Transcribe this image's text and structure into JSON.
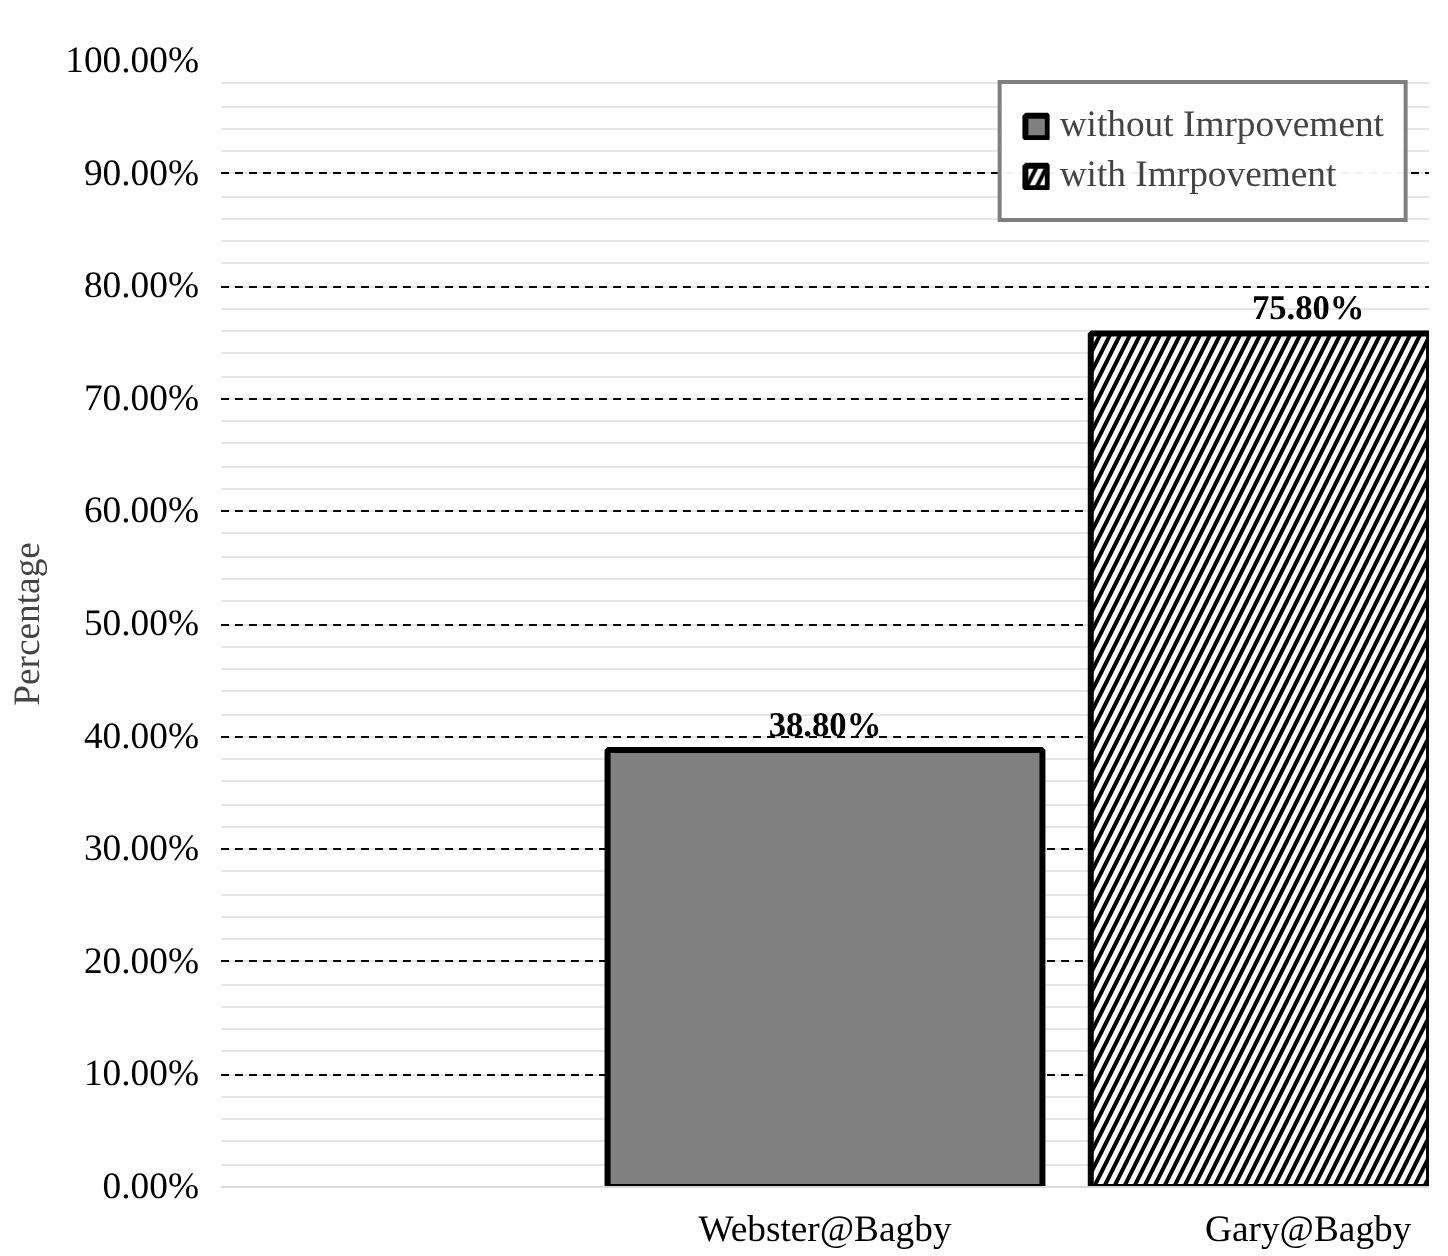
{
  "chart_data": {
    "type": "bar",
    "ylabel": "Percentage",
    "categories": [
      "Webster@Bagby",
      "Gary@Bagby"
    ],
    "series": [
      {
        "name": "without Imrpovement",
        "color": "#808080",
        "values": [
          38.8,
          null
        ],
        "value_labels": [
          "38.80%",
          null
        ]
      },
      {
        "name": "with Imrpovement",
        "color": "#ffffff",
        "values": [
          null,
          75.8
        ],
        "value_labels": [
          null,
          "75.80%"
        ]
      }
    ],
    "ylim": [
      0,
      100
    ],
    "yticks": [
      {
        "value": 0,
        "label": "0.00%"
      },
      {
        "value": 10,
        "label": "10.00%"
      },
      {
        "value": 20,
        "label": "20.00%"
      },
      {
        "value": 30,
        "label": "30.00%"
      },
      {
        "value": 40,
        "label": "40.00%"
      },
      {
        "value": 50,
        "label": "50.00%"
      },
      {
        "value": 60,
        "label": "60.00%"
      },
      {
        "value": 70,
        "label": "70.00%"
      },
      {
        "value": 80,
        "label": "80.00%"
      },
      {
        "value": 90,
        "label": "90.00%"
      },
      {
        "value": 100,
        "label": "100.00%"
      }
    ],
    "grid": "y",
    "legend": "top right"
  }
}
